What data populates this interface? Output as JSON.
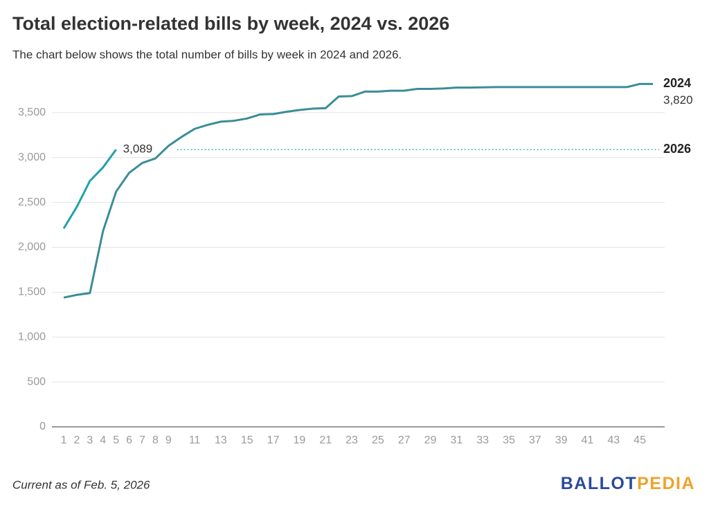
{
  "chart_data": {
    "type": "line",
    "title": "Total election-related bills by week, 2024 vs. 2026",
    "subtitle": "The chart below shows the total number of bills by week in 2024 and 2026.",
    "x": [
      1,
      2,
      3,
      4,
      5,
      6,
      7,
      8,
      9,
      10,
      11,
      12,
      13,
      14,
      15,
      16,
      17,
      18,
      19,
      20,
      21,
      22,
      23,
      24,
      25,
      26,
      27,
      28,
      29,
      30,
      31,
      32,
      33,
      34,
      35,
      36,
      37,
      38,
      39,
      40,
      41,
      42,
      43,
      44,
      45,
      46
    ],
    "series": [
      {
        "name": "2024",
        "color": "#3a8d97",
        "values": [
          1440,
          1470,
          1490,
          2180,
          2620,
          2830,
          2940,
          2990,
          3130,
          3230,
          3320,
          3365,
          3400,
          3410,
          3435,
          3480,
          3485,
          3510,
          3530,
          3545,
          3550,
          3680,
          3685,
          3735,
          3735,
          3745,
          3745,
          3765,
          3765,
          3770,
          3780,
          3780,
          3782,
          3785,
          3785,
          3785,
          3785,
          3785,
          3785,
          3785,
          3785,
          3785,
          3785,
          3785,
          3820,
          3820
        ],
        "value_labels": [
          null,
          null,
          null,
          null,
          null,
          null,
          null,
          null,
          null,
          null,
          null,
          null,
          null,
          null,
          null,
          null,
          null,
          null,
          null,
          null,
          null,
          null,
          null,
          null,
          null,
          null,
          null,
          null,
          null,
          null,
          null,
          null,
          null,
          null,
          null,
          null,
          null,
          null,
          null,
          null,
          null,
          null,
          null,
          null,
          null,
          "3,820"
        ]
      },
      {
        "name": "2026",
        "color": "#1fa1a8",
        "values": [
          2210,
          2450,
          2740,
          2890,
          3089,
          null,
          null,
          null,
          null,
          null,
          null,
          null,
          null,
          null,
          null,
          null,
          null,
          null,
          null,
          null,
          null,
          null,
          null,
          null,
          null,
          null,
          null,
          null,
          null,
          null,
          null,
          null,
          null,
          null,
          null,
          null,
          null,
          null,
          null,
          null,
          null,
          null,
          null,
          null,
          null,
          null
        ],
        "value_labels": [
          null,
          null,
          null,
          null,
          "3,089",
          null,
          null,
          null,
          null,
          null,
          null,
          null,
          null,
          null,
          null,
          null,
          null,
          null,
          null,
          null,
          null,
          null,
          null,
          null,
          null,
          null,
          null,
          null,
          null,
          null,
          null,
          null,
          null,
          null,
          null,
          null,
          null,
          null,
          null,
          null,
          null,
          null,
          null,
          null,
          null,
          null
        ]
      }
    ],
    "xlim": [
      0.1,
      46.9
    ],
    "xticks": [
      1,
      2,
      3,
      4,
      5,
      6,
      7,
      8,
      9,
      11,
      13,
      15,
      17,
      19,
      21,
      23,
      25,
      27,
      29,
      31,
      33,
      35,
      37,
      39,
      41,
      43,
      45
    ],
    "ylim": [
      0,
      3900
    ],
    "yticks": [
      0,
      500,
      {
        "value": 1000,
        "label": "1,000"
      },
      {
        "value": 1500,
        "label": "1,500"
      },
      {
        "value": 2000,
        "label": "2,000"
      },
      {
        "value": 2500,
        "label": "2,500"
      },
      {
        "value": 3000,
        "label": "3,000"
      },
      {
        "value": 3500,
        "label": "3,500"
      }
    ],
    "grid": true,
    "note": "Current as of Feb. 5, 2026",
    "logo": [
      "BALLOT",
      "PEDIA"
    ]
  }
}
